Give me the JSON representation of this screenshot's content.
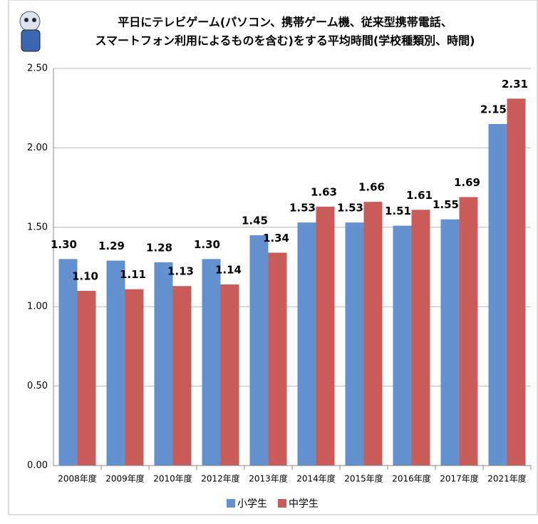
{
  "chart_data": {
    "type": "bar",
    "title": [
      "平日にテレビゲーム(パソコン、携帯ゲーム機、従来型携帯電話、",
      "スマートフォン利用によるものを含む)をする平均時間(学校種類別、時間)"
    ],
    "categories": [
      "2008年度",
      "2009年度",
      "2010年度",
      "2012年度",
      "2013年度",
      "2014年度",
      "2015年度",
      "2016年度",
      "2017年度",
      "2021年度"
    ],
    "series": [
      {
        "name": "小学生",
        "color": "#6390cf",
        "values": [
          1.3,
          1.29,
          1.28,
          1.3,
          1.45,
          1.53,
          1.53,
          1.51,
          1.55,
          2.15
        ],
        "value_labels": [
          "1.30",
          "1.29",
          "1.28",
          "1.30",
          "1.45",
          "1.53",
          "1.53",
          "1.51",
          "1.55",
          "2.15"
        ]
      },
      {
        "name": "中学生",
        "color": "#c95b59",
        "values": [
          1.1,
          1.11,
          1.13,
          1.14,
          1.34,
          1.63,
          1.66,
          1.61,
          1.69,
          2.31
        ],
        "value_labels": [
          "1.10",
          "1.11",
          "1.13",
          "1.14",
          "1.34",
          "1.63",
          "1.66",
          "1.61",
          "1.69",
          "2.31"
        ]
      }
    ],
    "ylim": [
      0,
      2.5
    ],
    "yticks": [
      {
        "value": 0,
        "label": "0.00"
      },
      {
        "value": 0.5,
        "label": "0.50"
      },
      {
        "value": 1,
        "label": "1.00"
      },
      {
        "value": 1.5,
        "label": "1.50"
      },
      {
        "value": 2,
        "label": "2.00"
      },
      {
        "value": 2.5,
        "label": "2.50"
      }
    ],
    "grid": true
  }
}
